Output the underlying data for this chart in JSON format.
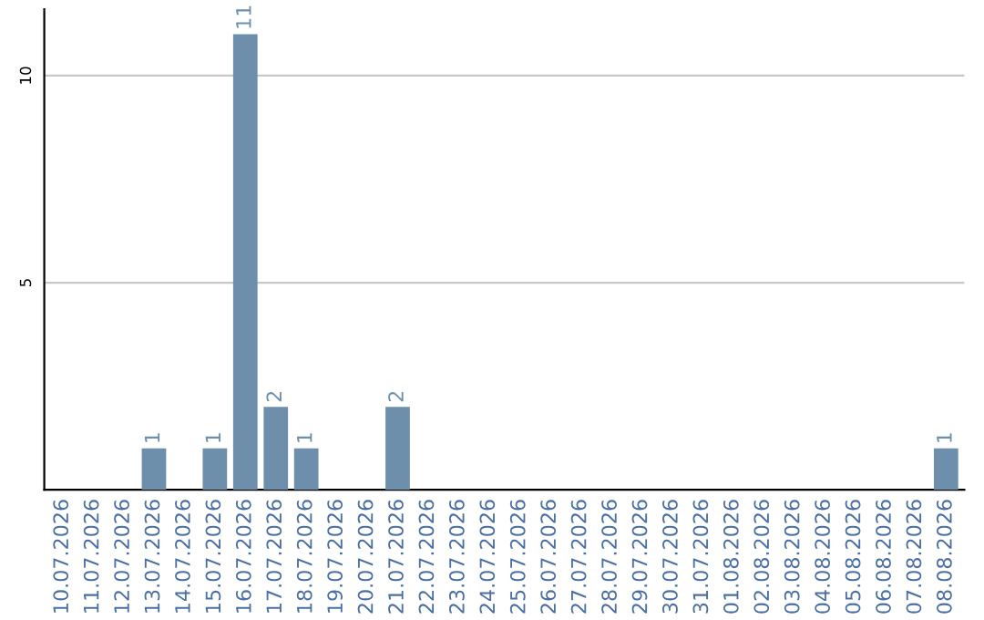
{
  "chart_data": {
    "type": "bar",
    "categories": [
      "10.07.2026",
      "11.07.2026",
      "12.07.2026",
      "13.07.2026",
      "14.07.2026",
      "15.07.2026",
      "16.07.2026",
      "17.07.2026",
      "18.07.2026",
      "19.07.2026",
      "20.07.2026",
      "21.07.2026",
      "22.07.2026",
      "23.07.2026",
      "24.07.2026",
      "25.07.2026",
      "26.07.2026",
      "27.07.2026",
      "28.07.2026",
      "29.07.2026",
      "30.07.2026",
      "31.07.2026",
      "01.08.2026",
      "02.08.2026",
      "03.08.2026",
      "04.08.2026",
      "05.08.2026",
      "06.08.2026",
      "07.08.2026",
      "08.08.2026"
    ],
    "values": [
      0,
      0,
      0,
      1,
      0,
      1,
      11,
      2,
      1,
      0,
      0,
      2,
      0,
      0,
      0,
      0,
      0,
      0,
      0,
      0,
      0,
      0,
      0,
      0,
      0,
      0,
      0,
      0,
      0,
      1
    ],
    "value_labels": [
      null,
      null,
      null,
      "1",
      null,
      "1",
      "11",
      "2",
      "1",
      null,
      null,
      "2",
      null,
      null,
      null,
      null,
      null,
      null,
      null,
      null,
      null,
      null,
      null,
      null,
      null,
      null,
      null,
      null,
      null,
      "1"
    ],
    "color": "#6e8fac",
    "ylim": [
      0,
      11.6
    ],
    "yticks": [
      5,
      10
    ],
    "grid": "y",
    "legend": false
  }
}
